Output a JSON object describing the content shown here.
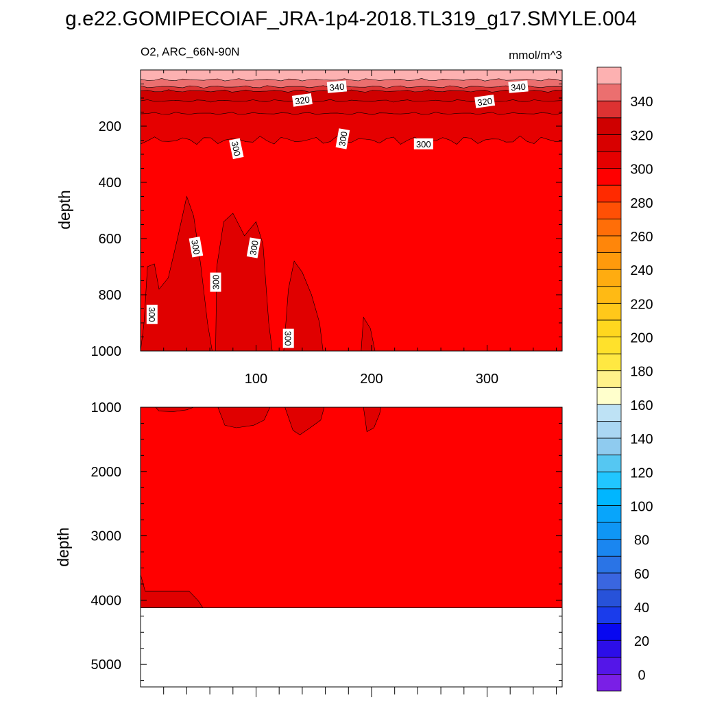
{
  "title": "g.e22.GOMIPECOIAF_JRA-1p4-2018.TL319_g17.SMYLE.004",
  "colors": {
    "background": "#ffffff",
    "deep_fill": "#ff0000",
    "patch_fill": "#e00000",
    "missing": "#ffffff",
    "line": "#000000"
  },
  "chart_data": [
    {
      "type": "contour",
      "panel": "upper",
      "subtitle_left": "O2, ARC_66N-90N",
      "subtitle_right": "mmol/m^3",
      "ylabel": "depth",
      "xlim": [
        0,
        365
      ],
      "ylim": [
        1000,
        0
      ],
      "x_ticks": [
        100,
        200,
        300
      ],
      "x_tick_labels": [
        "100",
        "200",
        "300"
      ],
      "y_ticks": [
        200,
        400,
        600,
        800,
        1000
      ],
      "y_tick_labels": [
        "200",
        "400",
        "600",
        "800",
        "1000"
      ],
      "surface_layers": [
        {
          "from": 0,
          "to": 35,
          "color": "#fdb1b1"
        },
        {
          "from": 35,
          "to": 60,
          "color": "#eb6f6f"
        },
        {
          "from": 60,
          "to": 75,
          "color": "#dd3232"
        },
        {
          "from": 75,
          "to": 110,
          "color": "#cf0000"
        },
        {
          "from": 110,
          "to": 155,
          "color": "#d80000"
        },
        {
          "from": 155,
          "to": 250,
          "color": "#e50000"
        }
      ],
      "contour_labels": [
        {
          "text": "340",
          "x": 170,
          "y": 60,
          "angle": -5
        },
        {
          "text": "340",
          "x": 327,
          "y": 60,
          "angle": -5
        },
        {
          "text": "320",
          "x": 140,
          "y": 107,
          "angle": -8
        },
        {
          "text": "320",
          "x": 298,
          "y": 112,
          "angle": -8
        },
        {
          "text": "300",
          "x": 83,
          "y": 280,
          "angle": 78
        },
        {
          "text": "300",
          "x": 175,
          "y": 245,
          "angle": -80
        },
        {
          "text": "300",
          "x": 245,
          "y": 263,
          "angle": 0
        },
        {
          "text": "300",
          "x": 48,
          "y": 630,
          "angle": 80
        },
        {
          "text": "300",
          "x": 98,
          "y": 633,
          "angle": -80
        },
        {
          "text": "300",
          "x": 65,
          "y": 755,
          "angle": -90
        },
        {
          "text": "300",
          "x": 10,
          "y": 870,
          "angle": 90
        },
        {
          "text": "300",
          "x": 128,
          "y": 955,
          "angle": 90
        }
      ]
    },
    {
      "type": "contour",
      "panel": "lower",
      "ylabel": "depth",
      "xlim": [
        0,
        365
      ],
      "ylim": [
        5350,
        1000
      ],
      "y_ticks": [
        1000,
        2000,
        3000,
        4000,
        5000
      ],
      "y_tick_labels": [
        "1000",
        "2000",
        "3000",
        "4000",
        "5000"
      ],
      "bottom_depth": 4120
    },
    {
      "type": "colorbar",
      "levels": [
        0,
        10,
        20,
        30,
        40,
        50,
        60,
        70,
        80,
        90,
        100,
        110,
        120,
        130,
        140,
        150,
        160,
        170,
        180,
        190,
        200,
        210,
        220,
        230,
        240,
        250,
        260,
        270,
        280,
        290,
        300,
        310,
        320,
        330,
        340,
        350
      ],
      "tick_labels": [
        "0",
        "20",
        "40",
        "60",
        "80",
        "100",
        "120",
        "140",
        "160",
        "180",
        "200",
        "220",
        "240",
        "260",
        "280",
        "300",
        "320",
        "340"
      ],
      "colors": [
        "#7a1fe6",
        "#5416e8",
        "#2c0ee8",
        "#0808f0",
        "#1a3ceb",
        "#2752d9",
        "#3a66e0",
        "#2a74e6",
        "#1a86f0",
        "#0f96f5",
        "#08a5fb",
        "#00b6ff",
        "#21c6ff",
        "#55c7f2",
        "#8fcbef",
        "#aad7f3",
        "#bee2f5",
        "#ffffcc",
        "#fff18a",
        "#ffe842",
        "#ffe12b",
        "#ffd71f",
        "#ffc81a",
        "#ffba14",
        "#ffac10",
        "#ff9a0c",
        "#ff860a",
        "#ff6e08",
        "#ff5005",
        "#ff2a00",
        "#ff0000",
        "#e50000",
        "#d80000",
        "#cf0000",
        "#dd3232",
        "#eb6f6f",
        "#fdb1b1"
      ]
    }
  ]
}
